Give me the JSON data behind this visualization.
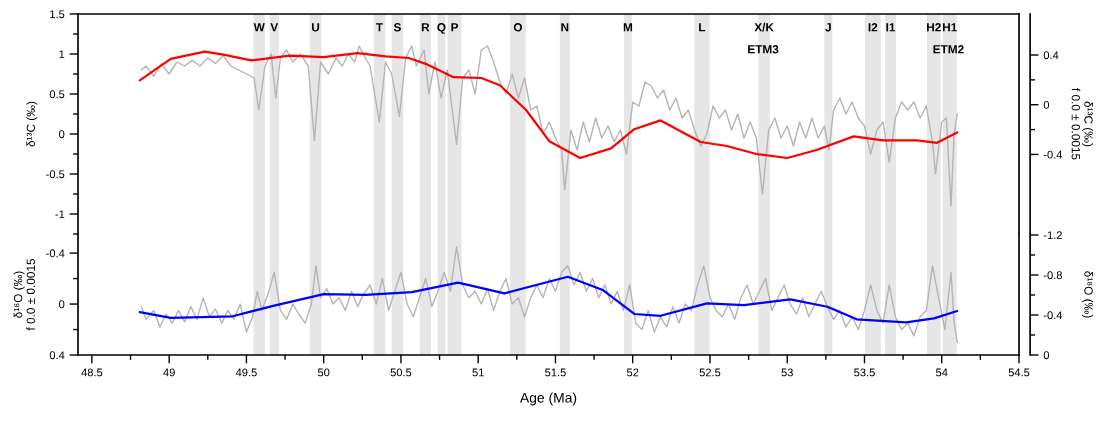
{
  "chart_data": [
    {
      "type": "line",
      "ylabel": "δ¹³C (‰)",
      "y2label": "δ¹³C (‰)\nf 0.0 ± 0.0015",
      "tick_labels": "y",
      "xlim": [
        48.41,
        54.5
      ],
      "ylim": [
        -1.25,
        1.5
      ],
      "yticks": [
        1.5,
        {
          "value": 1.25,
          "label": null
        },
        1,
        {
          "value": 0.75,
          "label": null
        },
        0.5,
        {
          "value": 0.25,
          "label": null
        },
        0,
        {
          "value": -0.25,
          "label": null
        },
        -0.5,
        {
          "value": -0.75,
          "label": null
        },
        -1,
        {
          "value": -1.25,
          "label": null
        }
      ],
      "y2lim": [
        -1.04,
        0.73
      ],
      "y2ticks": [
        0.4,
        {
          "value": 0.2,
          "label": null
        },
        0,
        {
          "value": -0.2,
          "label": null
        },
        -0.4
      ],
      "bands": [
        {
          "axis": "x",
          "from": 49.546,
          "to": 49.62,
          "label": "W",
          "color": "#e6e6e6"
        },
        {
          "axis": "x",
          "from": 49.65,
          "to": 49.71,
          "label": "V",
          "color": "#e6e6e6"
        },
        {
          "axis": "x",
          "from": 49.91,
          "to": 49.985,
          "label": "U",
          "color": "#e6e6e6"
        },
        {
          "axis": "x",
          "from": 50.324,
          "to": 50.398,
          "label": "T",
          "color": "#e6e6e6"
        },
        {
          "axis": "x",
          "from": 50.44,
          "to": 50.515,
          "label": "S",
          "color": "#e6e6e6"
        },
        {
          "axis": "x",
          "from": 50.621,
          "to": 50.695,
          "label": "R",
          "color": "#e6e6e6"
        },
        {
          "axis": "x",
          "from": 50.737,
          "to": 50.787,
          "label": "Q",
          "color": "#e6e6e6"
        },
        {
          "axis": "x",
          "from": 50.802,
          "to": 50.892,
          "label": "P",
          "color": "#e6e6e6"
        },
        {
          "axis": "x",
          "from": 51.206,
          "to": 51.308,
          "label": "O",
          "color": "#e6e6e6"
        },
        {
          "axis": "x",
          "from": 51.528,
          "to": 51.593,
          "label": "N",
          "color": "#e6e6e6"
        },
        {
          "axis": "x",
          "from": 51.944,
          "to": 51.994,
          "label": "M",
          "color": "#e6e6e6"
        },
        {
          "axis": "x",
          "from": 52.398,
          "to": 52.498,
          "label": "L",
          "color": "#e6e6e6"
        },
        {
          "axis": "x",
          "from": 52.813,
          "to": 52.888,
          "label": "X/K",
          "color": "#e6e6e6"
        },
        {
          "axis": "x",
          "from": 53.24,
          "to": 53.292,
          "label": "J",
          "color": "#e6e6e6"
        },
        {
          "axis": "x",
          "from": 53.503,
          "to": 53.605,
          "label": "I2",
          "color": "#e6e6e6"
        },
        {
          "axis": "x",
          "from": 53.633,
          "to": 53.704,
          "label": "I1",
          "color": "#e6e6e6"
        },
        {
          "axis": "x",
          "from": 53.904,
          "to": 53.993,
          "label": "H2",
          "color": "#e6e6e6"
        },
        {
          "axis": "x",
          "from": 54.006,
          "to": 54.097,
          "label": "H1",
          "color": "#e6e6e6"
        }
      ],
      "annotations": [
        "ETM3",
        "ETM2"
      ],
      "series": [
        {
          "color": "#b4b4b4",
          "x": [
            48.82,
            48.85,
            48.9,
            48.95,
            49.0,
            49.05,
            49.1,
            49.15,
            49.2,
            49.25,
            49.3,
            49.35,
            49.4,
            49.45,
            49.5,
            49.55,
            49.58,
            49.62,
            49.66,
            49.69,
            49.72,
            49.76,
            49.8,
            49.85,
            49.9,
            49.94,
            49.98,
            50.03,
            50.08,
            50.12,
            50.16,
            50.2,
            50.23,
            50.27,
            50.3,
            50.36,
            50.4,
            50.44,
            50.49,
            50.53,
            50.57,
            50.6,
            50.65,
            50.68,
            50.72,
            50.76,
            50.8,
            50.86,
            50.9,
            50.94,
            50.98,
            51.02,
            51.06,
            51.1,
            51.14,
            51.18,
            51.22,
            51.26,
            51.3,
            51.34,
            51.38,
            51.42,
            51.46,
            51.5,
            51.54,
            51.56,
            51.6,
            51.64,
            51.68,
            51.72,
            51.76,
            51.8,
            51.84,
            51.88,
            51.92,
            51.96,
            52.0,
            52.04,
            52.08,
            52.12,
            52.16,
            52.2,
            52.24,
            52.28,
            52.32,
            52.36,
            52.4,
            52.44,
            52.48,
            52.52,
            52.56,
            52.6,
            52.64,
            52.68,
            52.72,
            52.76,
            52.8,
            52.84,
            52.88,
            52.92,
            52.96,
            53.0,
            53.04,
            53.08,
            53.12,
            53.16,
            53.2,
            53.24,
            53.27,
            53.3,
            53.34,
            53.38,
            53.42,
            53.46,
            53.5,
            53.54,
            53.58,
            53.62,
            53.66,
            53.7,
            53.74,
            53.78,
            53.82,
            53.86,
            53.9,
            53.94,
            53.96,
            54.0,
            54.03,
            54.06,
            54.08,
            54.1
          ],
          "values": [
            0.8,
            0.85,
            0.72,
            0.88,
            0.75,
            0.9,
            0.85,
            0.92,
            0.85,
            0.95,
            0.88,
            0.98,
            0.85,
            0.8,
            0.75,
            0.7,
            0.3,
            0.85,
            1.0,
            0.45,
            0.95,
            1.05,
            0.9,
            1.0,
            0.85,
            -0.08,
            0.9,
            0.75,
            0.95,
            0.85,
            1.0,
            0.9,
            1.1,
            0.95,
            0.85,
            0.15,
            0.9,
            0.75,
            0.22,
            0.95,
            1.1,
            0.85,
            1.05,
            0.5,
            0.9,
            0.45,
            0.8,
            -0.13,
            0.7,
            0.8,
            0.5,
            1.05,
            1.1,
            0.9,
            0.65,
            0.5,
            0.75,
            0.45,
            0.7,
            0.3,
            0.35,
            0.0,
            0.15,
            -0.05,
            -0.2,
            -0.7,
            0.05,
            -0.2,
            0.15,
            -0.1,
            0.2,
            -0.05,
            0.1,
            -0.1,
            0.05,
            -0.25,
            0.4,
            0.35,
            0.65,
            0.6,
            0.45,
            0.55,
            0.3,
            0.45,
            0.2,
            0.3,
            0.05,
            -0.15,
            0.0,
            0.35,
            0.2,
            0.3,
            0.05,
            0.25,
            -0.05,
            0.15,
            -0.05,
            -0.75,
            0.05,
            0.2,
            -0.05,
            0.1,
            -0.15,
            0.15,
            -0.05,
            0.2,
            -0.05,
            0.1,
            -0.2,
            0.3,
            0.45,
            0.25,
            0.4,
            0.2,
            0.1,
            -0.25,
            0.05,
            0.15,
            -0.35,
            0.2,
            0.4,
            0.3,
            0.4,
            0.2,
            0.35,
            -0.1,
            -0.5,
            0.15,
            0.2,
            -0.9,
            0.0,
            0.25
          ]
        },
        {
          "color": "#ff0000",
          "x": [
            48.81,
            49.01,
            49.23,
            49.36,
            49.53,
            49.78,
            50.0,
            50.22,
            50.4,
            50.55,
            50.67,
            50.84,
            51.02,
            51.14,
            51.31,
            51.46,
            51.66,
            51.86,
            52.01,
            52.18,
            52.44,
            52.61,
            52.8,
            53.0,
            53.19,
            53.43,
            53.62,
            53.84,
            53.97,
            54.1
          ],
          "values": [
            0.67,
            0.94,
            1.03,
            0.99,
            0.92,
            0.98,
            0.96,
            1.01,
            0.97,
            0.95,
            0.87,
            0.71,
            0.7,
            0.61,
            0.3,
            -0.09,
            -0.3,
            -0.18,
            0.06,
            0.17,
            -0.1,
            -0.15,
            -0.25,
            -0.3,
            -0.2,
            -0.03,
            -0.08,
            -0.08,
            -0.11,
            0.02
          ]
        }
      ]
    },
    {
      "type": "line",
      "xlabel": "Age (Ma)",
      "ylabel": "δ¹⁸O (‰)\nf 0.0 ± 0.0015",
      "y2label": "δ¹⁸O (‰)",
      "xlim": [
        48.41,
        54.5
      ],
      "xticks": [
        48.5,
        {
          "value": 48.75,
          "label": null
        },
        49,
        {
          "value": 49.25,
          "label": null
        },
        49.5,
        {
          "value": 49.75,
          "label": null
        },
        50,
        {
          "value": 50.25,
          "label": null
        },
        50.5,
        {
          "value": 50.75,
          "label": null
        },
        51,
        {
          "value": 51.25,
          "label": null
        },
        51.5,
        {
          "value": 51.75,
          "label": null
        },
        52,
        {
          "value": 52.25,
          "label": null
        },
        52.5,
        {
          "value": 52.75,
          "label": null
        },
        53,
        {
          "value": 53.25,
          "label": null
        },
        53.5,
        {
          "value": 53.75,
          "label": null
        },
        54,
        {
          "value": 54.25,
          "label": null
        },
        54.5
      ],
      "ylim": [
        0.4,
        -0.55
      ],
      "yticks": [
        -0.4,
        {
          "value": -0.2,
          "label": null
        },
        0,
        {
          "value": 0.2,
          "label": null
        },
        0.4
      ],
      "y2lim": [
        0,
        -1.21
      ],
      "y2ticks": [
        -1.2,
        {
          "value": -1.0,
          "label": null
        },
        -0.8,
        {
          "value": -0.6,
          "label": null
        },
        -0.4,
        {
          "value": -0.2,
          "label": null
        },
        0
      ],
      "bands": [
        {
          "axis": "x",
          "from": 49.546,
          "to": 49.62,
          "color": "#e6e6e6"
        },
        {
          "axis": "x",
          "from": 49.65,
          "to": 49.71,
          "color": "#e6e6e6"
        },
        {
          "axis": "x",
          "from": 49.91,
          "to": 49.985,
          "color": "#e6e6e6"
        },
        {
          "axis": "x",
          "from": 50.324,
          "to": 50.398,
          "color": "#e6e6e6"
        },
        {
          "axis": "x",
          "from": 50.44,
          "to": 50.515,
          "color": "#e6e6e6"
        },
        {
          "axis": "x",
          "from": 50.621,
          "to": 50.695,
          "color": "#e6e6e6"
        },
        {
          "axis": "x",
          "from": 50.737,
          "to": 50.787,
          "color": "#e6e6e6"
        },
        {
          "axis": "x",
          "from": 50.802,
          "to": 50.892,
          "color": "#e6e6e6"
        },
        {
          "axis": "x",
          "from": 51.206,
          "to": 51.308,
          "color": "#e6e6e6"
        },
        {
          "axis": "x",
          "from": 51.528,
          "to": 51.593,
          "color": "#e6e6e6"
        },
        {
          "axis": "x",
          "from": 51.944,
          "to": 51.994,
          "color": "#e6e6e6"
        },
        {
          "axis": "x",
          "from": 52.398,
          "to": 52.498,
          "color": "#e6e6e6"
        },
        {
          "axis": "x",
          "from": 52.813,
          "to": 52.888,
          "color": "#e6e6e6"
        },
        {
          "axis": "x",
          "from": 53.24,
          "to": 53.292,
          "color": "#e6e6e6"
        },
        {
          "axis": "x",
          "from": 53.503,
          "to": 53.605,
          "color": "#e6e6e6"
        },
        {
          "axis": "x",
          "from": 53.633,
          "to": 53.704,
          "color": "#e6e6e6"
        },
        {
          "axis": "x",
          "from": 53.904,
          "to": 53.993,
          "color": "#e6e6e6"
        },
        {
          "axis": "x",
          "from": 54.006,
          "to": 54.097,
          "color": "#e6e6e6"
        }
      ],
      "series": [
        {
          "color": "#b4b4b4",
          "x": [
            48.82,
            48.85,
            48.9,
            48.94,
            48.98,
            49.02,
            49.06,
            49.1,
            49.14,
            49.18,
            49.22,
            49.26,
            49.3,
            49.34,
            49.38,
            49.42,
            49.46,
            49.5,
            49.54,
            49.57,
            49.6,
            49.64,
            49.68,
            49.72,
            49.76,
            49.8,
            49.84,
            49.88,
            49.92,
            49.95,
            49.98,
            50.02,
            50.06,
            50.1,
            50.14,
            50.18,
            50.22,
            50.26,
            50.3,
            50.34,
            50.38,
            50.42,
            50.46,
            50.5,
            50.54,
            50.58,
            50.62,
            50.66,
            50.7,
            50.74,
            50.78,
            50.82,
            50.86,
            50.9,
            50.94,
            50.98,
            51.02,
            51.06,
            51.1,
            51.14,
            51.18,
            51.22,
            51.26,
            51.3,
            51.34,
            51.38,
            51.42,
            51.46,
            51.5,
            51.54,
            51.58,
            51.62,
            51.66,
            51.7,
            51.74,
            51.78,
            51.82,
            51.86,
            51.9,
            51.94,
            51.98,
            52.02,
            52.06,
            52.1,
            52.14,
            52.18,
            52.22,
            52.26,
            52.3,
            52.34,
            52.38,
            52.42,
            52.46,
            52.5,
            52.54,
            52.58,
            52.62,
            52.66,
            52.7,
            52.74,
            52.78,
            52.82,
            52.86,
            52.9,
            52.94,
            52.98,
            53.02,
            53.06,
            53.1,
            53.14,
            53.18,
            53.22,
            53.26,
            53.3,
            53.34,
            53.38,
            53.42,
            53.46,
            53.5,
            53.54,
            53.58,
            53.62,
            53.66,
            53.7,
            53.74,
            53.78,
            53.82,
            53.86,
            53.9,
            53.94,
            53.98,
            54.02,
            54.06,
            54.08,
            54.1
          ],
          "values": [
            0.02,
            0.12,
            0.05,
            0.18,
            0.08,
            0.15,
            0.05,
            0.14,
            0.02,
            0.12,
            -0.05,
            0.1,
            0.04,
            0.15,
            0.05,
            0.12,
            0.0,
            0.22,
            0.1,
            -0.1,
            0.05,
            -0.08,
            -0.25,
            0.05,
            0.12,
            0.0,
            0.08,
            0.15,
            0.0,
            -0.3,
            -0.05,
            -0.12,
            0.0,
            -0.05,
            0.05,
            -0.1,
            0.02,
            -0.08,
            -0.15,
            0.0,
            -0.2,
            0.05,
            -0.1,
            -0.25,
            0.0,
            0.1,
            -0.05,
            -0.2,
            0.02,
            -0.1,
            -0.25,
            -0.1,
            -0.45,
            -0.15,
            -0.05,
            -0.1,
            0.0,
            -0.12,
            0.05,
            -0.1,
            -0.2,
            0.0,
            -0.05,
            0.1,
            -0.05,
            -0.15,
            -0.05,
            -0.2,
            -0.1,
            -0.25,
            -0.3,
            -0.15,
            -0.25,
            -0.1,
            -0.2,
            -0.05,
            -0.15,
            0.0,
            -0.1,
            0.05,
            -0.15,
            0.15,
            0.2,
            0.05,
            0.22,
            0.1,
            0.18,
            0.02,
            0.15,
            0.0,
            0.05,
            -0.15,
            -0.3,
            -0.05,
            0.05,
            0.1,
            0.0,
            0.12,
            -0.05,
            -0.15,
            0.0,
            -0.1,
            -0.2,
            0.05,
            -0.05,
            -0.15,
            0.0,
            0.08,
            -0.05,
            0.1,
            0.0,
            -0.1,
            0.02,
            0.12,
            0.05,
            0.18,
            0.1,
            0.2,
            0.05,
            -0.15,
            0.05,
            0.15,
            -0.15,
            0.1,
            0.2,
            0.15,
            0.25,
            0.1,
            0.05,
            -0.3,
            -0.05,
            0.2,
            -0.25,
            0.15,
            0.3
          ]
        },
        {
          "color": "#0000ff",
          "x": [
            48.81,
            49.01,
            49.41,
            49.68,
            50.0,
            50.27,
            50.57,
            50.87,
            51.17,
            51.58,
            51.81,
            52.01,
            52.18,
            52.48,
            52.72,
            53.02,
            53.26,
            53.45,
            53.77,
            53.95,
            54.1
          ],
          "values": [
            0.063,
            0.108,
            0.096,
            0.012,
            -0.078,
            -0.072,
            -0.093,
            -0.168,
            -0.084,
            -0.214,
            -0.108,
            0.078,
            0.092,
            -0.005,
            0.008,
            -0.037,
            0.021,
            0.12,
            0.144,
            0.112,
            0.055
          ]
        }
      ]
    }
  ]
}
